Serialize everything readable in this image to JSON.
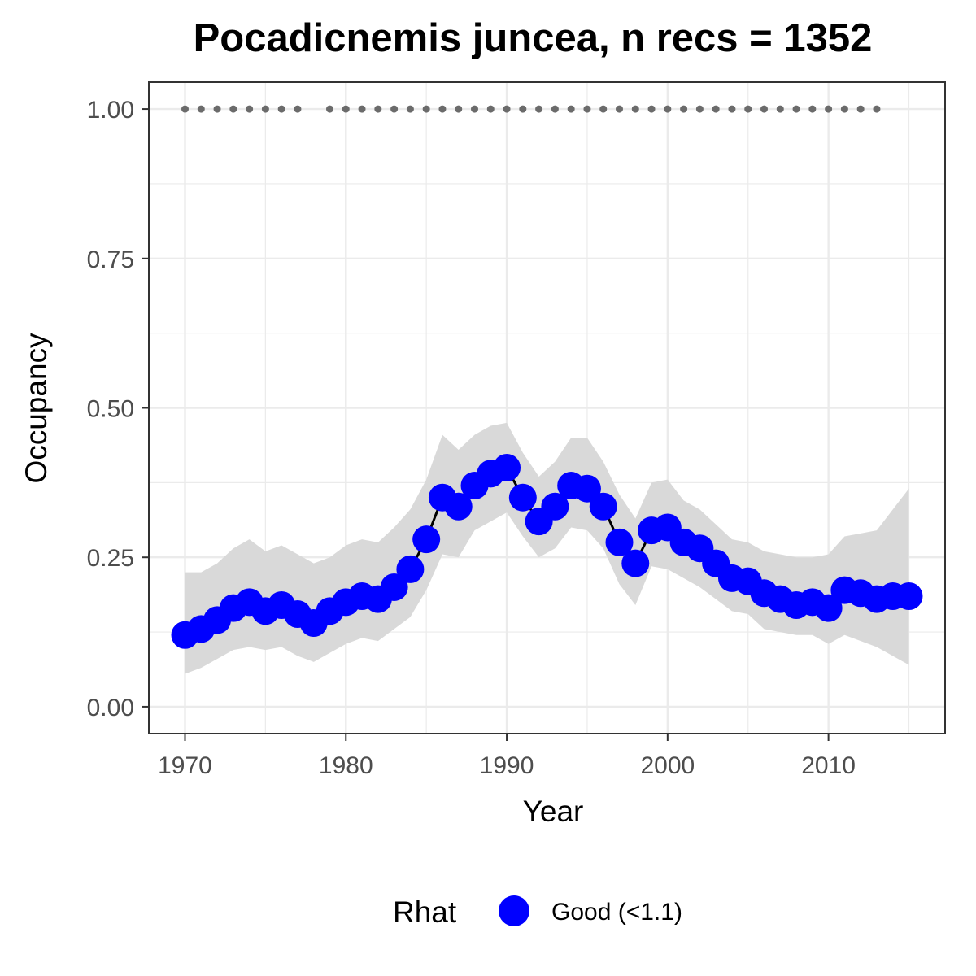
{
  "chart_data": {
    "type": "line",
    "title": "Pocadicnemis juncea, n recs = 1352",
    "xlabel": "Year",
    "ylabel": "Occupancy",
    "xlim": [
      1967.75,
      2017.25
    ],
    "ylim": [
      -0.045,
      1.045
    ],
    "x_ticks": [
      1970,
      1980,
      1990,
      2000,
      2010
    ],
    "y_ticks": [
      0.0,
      0.25,
      0.5,
      0.75,
      1.0
    ],
    "y_tick_labels": [
      "0.00",
      "0.25",
      "0.50",
      "0.75",
      "1.00"
    ],
    "grid": true,
    "legend": {
      "title": "Rhat",
      "entries": [
        "Good (<1.1)"
      ],
      "position": "bottom"
    },
    "colors": {
      "points": "#0000ff",
      "line": "#000000",
      "ribbon": "#d9d9d9",
      "record_years": "#6b6b6b",
      "grid": "#ebebeb",
      "panel_border": "#333333"
    },
    "series": [
      {
        "x": [
          1970,
          1971,
          1972,
          1973,
          1974,
          1975,
          1976,
          1977,
          1978,
          1979,
          1980,
          1981,
          1982,
          1983,
          1984,
          1985,
          1986,
          1987,
          1988,
          1989,
          1990,
          1991,
          1992,
          1993,
          1994,
          1995,
          1996,
          1997,
          1998,
          1999,
          2000,
          2001,
          2002,
          2003,
          2004,
          2005,
          2006,
          2007,
          2008,
          2009,
          2010,
          2011,
          2012,
          2013,
          2014,
          2015
        ],
        "y": [
          0.12,
          0.13,
          0.145,
          0.165,
          0.175,
          0.16,
          0.17,
          0.155,
          0.14,
          0.16,
          0.175,
          0.185,
          0.18,
          0.2,
          0.23,
          0.28,
          0.35,
          0.335,
          0.37,
          0.39,
          0.4,
          0.35,
          0.31,
          0.335,
          0.37,
          0.365,
          0.335,
          0.275,
          0.24,
          0.295,
          0.3,
          0.275,
          0.265,
          0.24,
          0.215,
          0.21,
          0.19,
          0.18,
          0.17,
          0.175,
          0.165,
          0.195,
          0.19,
          0.18,
          0.185,
          0.185
        ],
        "lower": [
          0.055,
          0.065,
          0.08,
          0.095,
          0.1,
          0.095,
          0.1,
          0.085,
          0.075,
          0.09,
          0.105,
          0.115,
          0.11,
          0.13,
          0.15,
          0.195,
          0.255,
          0.25,
          0.295,
          0.31,
          0.325,
          0.285,
          0.25,
          0.265,
          0.3,
          0.295,
          0.265,
          0.205,
          0.17,
          0.235,
          0.23,
          0.215,
          0.2,
          0.18,
          0.16,
          0.155,
          0.13,
          0.125,
          0.12,
          0.12,
          0.105,
          0.12,
          0.11,
          0.1,
          0.085,
          0.07
        ],
        "upper": [
          0.225,
          0.225,
          0.24,
          0.265,
          0.28,
          0.26,
          0.27,
          0.255,
          0.24,
          0.25,
          0.27,
          0.28,
          0.275,
          0.3,
          0.33,
          0.38,
          0.455,
          0.43,
          0.455,
          0.47,
          0.475,
          0.425,
          0.385,
          0.41,
          0.45,
          0.45,
          0.41,
          0.355,
          0.315,
          0.375,
          0.38,
          0.345,
          0.33,
          0.305,
          0.28,
          0.275,
          0.26,
          0.255,
          0.25,
          0.25,
          0.255,
          0.285,
          0.29,
          0.295,
          0.33,
          0.365
        ]
      }
    ],
    "record_years": {
      "y": 1.0,
      "x": [
        1970,
        1971,
        1972,
        1973,
        1974,
        1975,
        1976,
        1977,
        1979,
        1980,
        1981,
        1982,
        1983,
        1984,
        1985,
        1986,
        1987,
        1988,
        1989,
        1990,
        1991,
        1992,
        1993,
        1994,
        1995,
        1996,
        1997,
        1998,
        1999,
        2000,
        2001,
        2002,
        2003,
        2004,
        2005,
        2006,
        2007,
        2008,
        2009,
        2010,
        2011,
        2012,
        2013
      ]
    }
  }
}
